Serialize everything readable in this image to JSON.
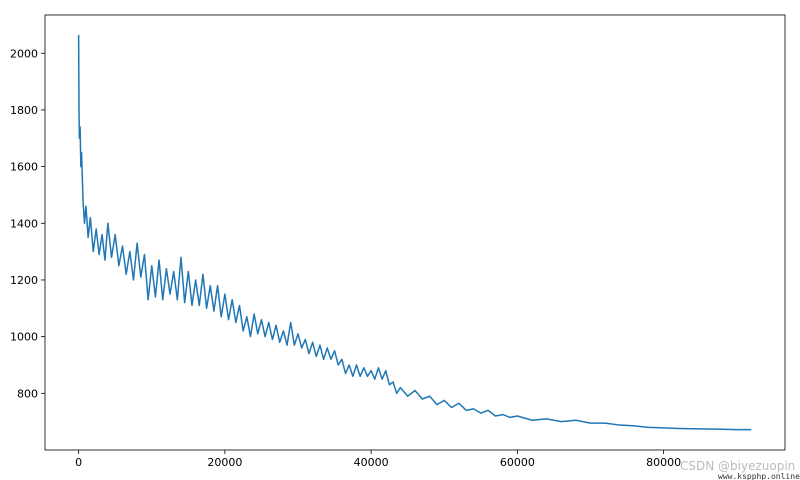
{
  "chart_data": {
    "type": "line",
    "x": [
      0,
      50,
      100,
      200,
      300,
      400,
      600,
      800,
      1000,
      1300,
      1600,
      2000,
      2400,
      2800,
      3200,
      3600,
      4000,
      4500,
      5000,
      5500,
      6000,
      6500,
      7000,
      7500,
      8000,
      8500,
      9000,
      9500,
      10000,
      10500,
      11000,
      11500,
      12000,
      12500,
      13000,
      13500,
      14000,
      14500,
      15000,
      15500,
      16000,
      16500,
      17000,
      17500,
      18000,
      18500,
      19000,
      19500,
      20000,
      20500,
      21000,
      21500,
      22000,
      22500,
      23000,
      23500,
      24000,
      24500,
      25000,
      25500,
      26000,
      26500,
      27000,
      27500,
      28000,
      28500,
      29000,
      29500,
      30000,
      30500,
      31000,
      31500,
      32000,
      32500,
      33000,
      33500,
      34000,
      34500,
      35000,
      35500,
      36000,
      36500,
      37000,
      37500,
      38000,
      38500,
      39000,
      39500,
      40000,
      40500,
      41000,
      41500,
      42000,
      42500,
      43000,
      43500,
      44000,
      45000,
      46000,
      47000,
      48000,
      49000,
      50000,
      51000,
      52000,
      53000,
      54000,
      55000,
      56000,
      57000,
      58000,
      59000,
      60000,
      62000,
      64000,
      66000,
      68000,
      70000,
      72000,
      74000,
      76000,
      78000,
      80000,
      82000,
      84000,
      86000,
      88000,
      90000,
      92000
    ],
    "series": [
      {
        "color": "#1f77b4",
        "values": [
          2065,
          1800,
          1700,
          1740,
          1600,
          1650,
          1480,
          1400,
          1460,
          1350,
          1420,
          1300,
          1380,
          1290,
          1360,
          1270,
          1400,
          1280,
          1360,
          1250,
          1320,
          1220,
          1300,
          1200,
          1330,
          1210,
          1290,
          1130,
          1250,
          1140,
          1270,
          1130,
          1240,
          1150,
          1230,
          1130,
          1280,
          1120,
          1230,
          1110,
          1200,
          1110,
          1220,
          1100,
          1180,
          1090,
          1180,
          1070,
          1150,
          1060,
          1130,
          1050,
          1110,
          1020,
          1070,
          1000,
          1080,
          1010,
          1060,
          1000,
          1050,
          990,
          1040,
          980,
          1020,
          970,
          1050,
          970,
          1010,
          960,
          990,
          940,
          980,
          930,
          970,
          920,
          960,
          920,
          950,
          900,
          920,
          870,
          900,
          860,
          900,
          860,
          890,
          860,
          880,
          850,
          890,
          850,
          880,
          830,
          840,
          800,
          820,
          790,
          810,
          780,
          790,
          760,
          775,
          750,
          765,
          740,
          745,
          730,
          740,
          720,
          725,
          715,
          720,
          705,
          710,
          700,
          705,
          695,
          695,
          688,
          685,
          680,
          678,
          676,
          675,
          674,
          673,
          672,
          672
        ]
      }
    ],
    "xlim": [
      -4600,
      96600
    ],
    "ylim": [
      600,
      2135
    ],
    "xticks": [
      0,
      20000,
      40000,
      60000,
      80000
    ],
    "yticks": [
      800,
      1000,
      1200,
      1400,
      1600,
      1800,
      2000
    ]
  },
  "watermark": "CSDN @biyezuopin",
  "watermark_url": "www.kspphp.online"
}
